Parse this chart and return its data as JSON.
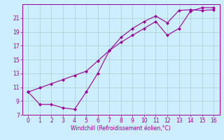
{
  "xlabel": "Windchill (Refroidissement éolien,°C)",
  "bg_color": "#cceeff",
  "line_color": "#990099",
  "grid_color": "#aacccc",
  "series1_x": [
    0,
    1,
    2,
    3,
    4,
    5,
    6,
    7,
    8,
    9,
    10,
    11,
    12,
    13,
    14,
    15,
    16
  ],
  "series1_y": [
    10.3,
    8.5,
    8.5,
    8.0,
    7.8,
    10.3,
    13.0,
    16.3,
    18.2,
    19.5,
    20.5,
    21.3,
    20.3,
    22.1,
    22.2,
    22.1,
    22.2
  ],
  "series2_x": [
    0,
    1,
    2,
    3,
    4,
    5,
    6,
    7,
    8,
    9,
    10,
    11,
    12,
    13,
    14,
    15,
    16
  ],
  "series2_y": [
    10.3,
    10.9,
    11.5,
    12.1,
    12.7,
    13.3,
    14.8,
    16.3,
    17.5,
    18.5,
    19.5,
    20.5,
    18.5,
    19.5,
    22.0,
    22.5,
    22.5
  ],
  "ylim": [
    7,
    23
  ],
  "xlim": [
    -0.5,
    16.5
  ],
  "yticks": [
    7,
    9,
    11,
    13,
    15,
    17,
    19,
    21
  ],
  "xticks": [
    0,
    1,
    2,
    3,
    4,
    5,
    6,
    7,
    8,
    9,
    10,
    11,
    12,
    13,
    14,
    15,
    16
  ],
  "marker_size": 2.5,
  "linewidth": 0.8,
  "xlabel_fontsize": 5.5,
  "tick_labelsize": 5.5
}
